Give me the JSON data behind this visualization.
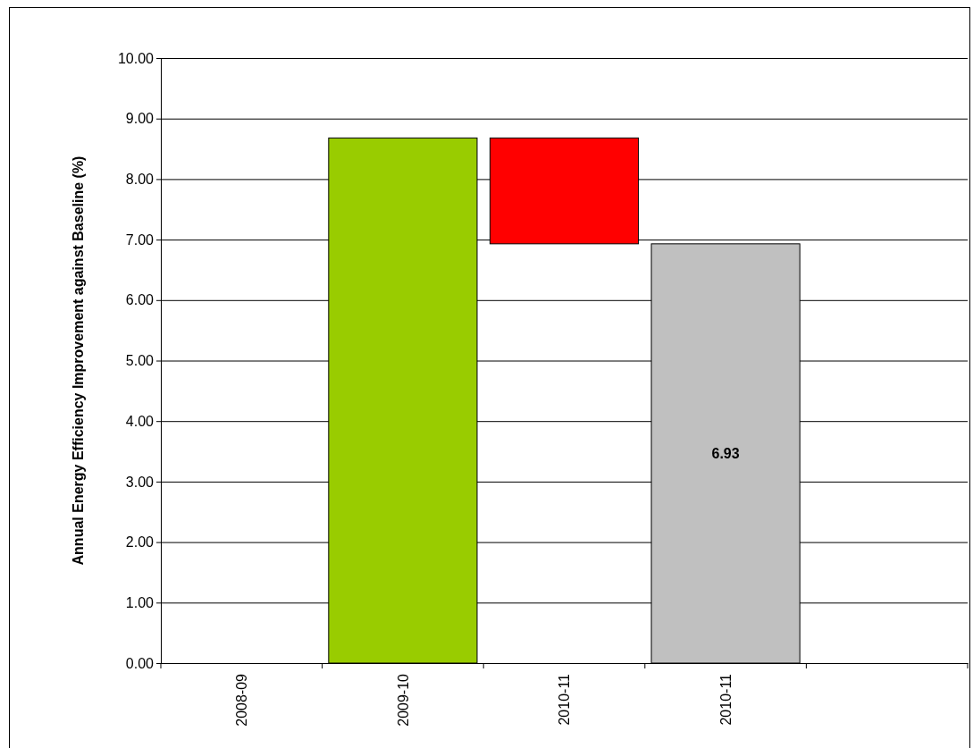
{
  "chart_data": {
    "type": "bar",
    "ylabel": "Annual Energy Efficiency Improvement against Baseline (%)",
    "categories": [
      "2008-09",
      "2009-10",
      "2010-11",
      "2010-11",
      null
    ],
    "values": [
      null,
      8.68,
      1.75,
      6.93,
      null
    ],
    "base": [
      null,
      0,
      6.93,
      0,
      null
    ],
    "colors": [
      null,
      "#99cc00",
      "#ff0000",
      "#c0c0c0",
      null
    ],
    "value_labels": [
      null,
      null,
      null,
      "6.93",
      null
    ],
    "ylim": [
      0,
      10
    ],
    "yticks": [
      {
        "value": 0,
        "label": "0.00"
      },
      {
        "value": 1,
        "label": "1.00"
      },
      {
        "value": 2,
        "label": "2.00"
      },
      {
        "value": 3,
        "label": "3.00"
      },
      {
        "value": 4,
        "label": "4.00"
      },
      {
        "value": 5,
        "label": "5.00"
      },
      {
        "value": 6,
        "label": "6.00"
      },
      {
        "value": 7,
        "label": "7.00"
      },
      {
        "value": 8,
        "label": "8.00"
      },
      {
        "value": 9,
        "label": "9.00"
      },
      {
        "value": 10,
        "label": "10.00"
      }
    ],
    "grid": "y"
  }
}
